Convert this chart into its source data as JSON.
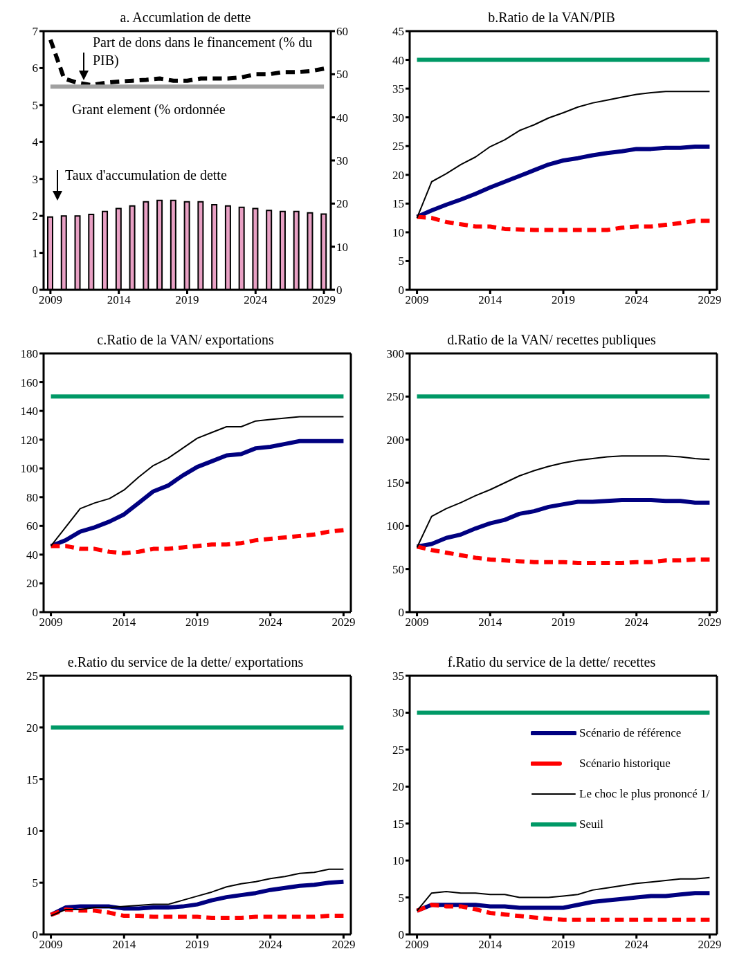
{
  "chart_data": [
    {
      "type": "bar",
      "title": "a. Accumlation de dette",
      "x": [
        2009,
        2010,
        2011,
        2012,
        2013,
        2014,
        2015,
        2016,
        2017,
        2018,
        2019,
        2020,
        2021,
        2022,
        2023,
        2024,
        2025,
        2026,
        2027,
        2028,
        2029
      ],
      "xlim": [
        2008.5,
        2029.5
      ],
      "xticks": [
        2009,
        2014,
        2019,
        2024,
        2029
      ],
      "ylim": [
        0,
        7
      ],
      "yticks": [
        0,
        1,
        2,
        3,
        4,
        5,
        6,
        7
      ],
      "y2lim": [
        0,
        60
      ],
      "y2ticks": [
        0,
        10,
        20,
        30,
        40,
        50,
        60
      ],
      "series": [
        {
          "color": "#e8a0c4",
          "values": [
            1.97,
            2.0,
            2.0,
            2.04,
            2.12,
            2.2,
            2.27,
            2.38,
            2.42,
            2.42,
            2.38,
            2.38,
            2.3,
            2.27,
            2.23,
            2.2,
            2.15,
            2.12,
            2.12,
            2.08,
            2.05
          ]
        },
        {
          "type": "line",
          "axis": "y2",
          "color": "#000000",
          "line_style": "dashed",
          "values": [
            58,
            49,
            48,
            47.5,
            48,
            48.3,
            48.5,
            48.7,
            49,
            48.5,
            48.5,
            49,
            49,
            49,
            49.3,
            50,
            50,
            50.5,
            50.5,
            50.7,
            51.3
          ]
        },
        {
          "type": "line",
          "color": "#a0a0a0",
          "values": [
            5.5,
            5.5,
            5.5,
            5.5,
            5.5,
            5.5,
            5.5,
            5.5,
            5.5,
            5.5,
            5.5,
            5.5,
            5.5,
            5.5,
            5.5,
            5.5,
            5.5,
            5.5,
            5.5,
            5.5,
            5.5
          ]
        }
      ],
      "annotations": [
        "Part de dons dans le financement (% du PIB)",
        "Grant element (% ordonnée",
        "Taux d'accumulation de dette"
      ]
    },
    {
      "type": "line",
      "title": "b.Ratio de la VAN/PIB",
      "x": [
        2009,
        2010,
        2011,
        2012,
        2013,
        2014,
        2015,
        2016,
        2017,
        2018,
        2019,
        2020,
        2021,
        2022,
        2023,
        2024,
        2025,
        2026,
        2027,
        2028,
        2029
      ],
      "xlim": [
        2008.5,
        2029.5
      ],
      "xticks": [
        2009,
        2014,
        2019,
        2024,
        2029
      ],
      "ylim": [
        0,
        45
      ],
      "yticks": [
        0,
        5,
        10,
        15,
        20,
        25,
        30,
        35,
        40,
        45
      ],
      "series": [
        {
          "color": "#000080",
          "values": [
            12.7,
            13.8,
            14.8,
            15.7,
            16.7,
            17.8,
            18.8,
            19.8,
            20.8,
            21.8,
            22.5,
            22.9,
            23.4,
            23.8,
            24.1,
            24.5,
            24.5,
            24.7,
            24.7,
            24.9,
            24.9
          ]
        },
        {
          "color": "#ff0000",
          "line_style": "dashed",
          "values": [
            12.7,
            12.5,
            11.8,
            11.4,
            11.0,
            11.0,
            10.6,
            10.5,
            10.4,
            10.4,
            10.4,
            10.4,
            10.4,
            10.4,
            10.8,
            11.0,
            11.0,
            11.3,
            11.6,
            12.0,
            12.0
          ]
        },
        {
          "color": "#000000",
          "values": [
            12.5,
            18.8,
            20.2,
            21.8,
            23.1,
            24.9,
            26.1,
            27.7,
            28.7,
            29.9,
            30.8,
            31.8,
            32.5,
            33.0,
            33.5,
            34.0,
            34.3,
            34.5,
            34.5,
            34.5,
            34.5
          ]
        },
        {
          "color": "#009966",
          "values": [
            40,
            40,
            40,
            40,
            40,
            40,
            40,
            40,
            40,
            40,
            40,
            40,
            40,
            40,
            40,
            40,
            40,
            40,
            40,
            40,
            40
          ]
        }
      ]
    },
    {
      "type": "line",
      "title": "c.Ratio de la VAN/ exportations",
      "x": [
        2009,
        2010,
        2011,
        2012,
        2013,
        2014,
        2015,
        2016,
        2017,
        2018,
        2019,
        2020,
        2021,
        2022,
        2023,
        2024,
        2025,
        2026,
        2027,
        2028,
        2029
      ],
      "xlim": [
        2008.5,
        2029.5
      ],
      "xticks": [
        2009,
        2014,
        2019,
        2024,
        2029
      ],
      "ylim": [
        0,
        180
      ],
      "yticks": [
        0,
        20,
        40,
        60,
        80,
        100,
        120,
        140,
        160,
        180
      ],
      "series": [
        {
          "color": "#000080",
          "values": [
            46,
            50,
            56,
            59,
            63,
            68,
            76,
            84,
            88,
            95,
            101,
            105,
            109,
            110,
            114,
            115,
            117,
            119,
            119,
            119,
            119
          ]
        },
        {
          "color": "#ff0000",
          "line_style": "dashed",
          "values": [
            46,
            46,
            44,
            44,
            42,
            41,
            42,
            44,
            44,
            45,
            46,
            47,
            47,
            48,
            50,
            51,
            52,
            53,
            54,
            56,
            57
          ]
        },
        {
          "color": "#000000",
          "values": [
            46,
            59,
            72,
            76,
            79,
            85,
            94,
            102,
            107,
            114,
            121,
            125,
            129,
            129,
            133,
            134,
            135,
            136,
            136,
            136,
            136
          ]
        },
        {
          "color": "#009966",
          "values": [
            150,
            150,
            150,
            150,
            150,
            150,
            150,
            150,
            150,
            150,
            150,
            150,
            150,
            150,
            150,
            150,
            150,
            150,
            150,
            150,
            150
          ]
        }
      ]
    },
    {
      "type": "line",
      "title": "d.Ratio de la VAN/ recettes publiques",
      "x": [
        2009,
        2010,
        2011,
        2012,
        2013,
        2014,
        2015,
        2016,
        2017,
        2018,
        2019,
        2020,
        2021,
        2022,
        2023,
        2024,
        2025,
        2026,
        2027,
        2028,
        2029
      ],
      "xlim": [
        2008.5,
        2029.5
      ],
      "xticks": [
        2009,
        2014,
        2019,
        2024,
        2029
      ],
      "ylim": [
        0,
        300
      ],
      "yticks": [
        0,
        50,
        100,
        150,
        200,
        250,
        300
      ],
      "series": [
        {
          "color": "#000080",
          "values": [
            76,
            79,
            86,
            90,
            97,
            103,
            107,
            114,
            117,
            122,
            125,
            128,
            128,
            129,
            130,
            130,
            130,
            129,
            129,
            127,
            127
          ]
        },
        {
          "color": "#ff0000",
          "line_style": "dashed",
          "values": [
            76,
            72,
            69,
            66,
            63,
            61,
            60,
            59,
            58,
            58,
            58,
            57,
            57,
            57,
            57,
            58,
            58,
            60,
            60,
            61,
            61
          ]
        },
        {
          "color": "#000000",
          "values": [
            75,
            111,
            120,
            127,
            135,
            142,
            150,
            158,
            164,
            169,
            173,
            176,
            178,
            180,
            181,
            181,
            181,
            181,
            180,
            178,
            177
          ]
        },
        {
          "color": "#009966",
          "values": [
            250,
            250,
            250,
            250,
            250,
            250,
            250,
            250,
            250,
            250,
            250,
            250,
            250,
            250,
            250,
            250,
            250,
            250,
            250,
            250,
            250
          ]
        }
      ]
    },
    {
      "type": "line",
      "title": "e.Ratio du service de la dette/ exportations",
      "x": [
        2009,
        2010,
        2011,
        2012,
        2013,
        2014,
        2015,
        2016,
        2017,
        2018,
        2019,
        2020,
        2021,
        2022,
        2023,
        2024,
        2025,
        2026,
        2027,
        2028,
        2029
      ],
      "xlim": [
        2008.5,
        2029.5
      ],
      "xticks": [
        2009,
        2014,
        2019,
        2024,
        2029
      ],
      "ylim": [
        0,
        25
      ],
      "yticks": [
        0,
        5,
        10,
        15,
        20,
        25
      ],
      "series": [
        {
          "color": "#000080",
          "values": [
            1.9,
            2.6,
            2.7,
            2.7,
            2.7,
            2.5,
            2.5,
            2.6,
            2.6,
            2.7,
            2.9,
            3.3,
            3.6,
            3.8,
            4.0,
            4.3,
            4.5,
            4.7,
            4.8,
            5.0,
            5.1
          ]
        },
        {
          "color": "#ff0000",
          "line_style": "dashed",
          "values": [
            1.9,
            2.4,
            2.3,
            2.3,
            2.1,
            1.8,
            1.8,
            1.7,
            1.7,
            1.7,
            1.7,
            1.6,
            1.6,
            1.6,
            1.7,
            1.7,
            1.7,
            1.7,
            1.7,
            1.8,
            1.8
          ]
        },
        {
          "color": "#000000",
          "values": [
            1.8,
            2.4,
            2.4,
            2.6,
            2.6,
            2.7,
            2.8,
            2.9,
            2.9,
            3.3,
            3.7,
            4.1,
            4.6,
            4.9,
            5.1,
            5.4,
            5.6,
            5.9,
            6.0,
            6.3,
            6.3
          ]
        },
        {
          "color": "#009966",
          "values": [
            20,
            20,
            20,
            20,
            20,
            20,
            20,
            20,
            20,
            20,
            20,
            20,
            20,
            20,
            20,
            20,
            20,
            20,
            20,
            20,
            20
          ]
        }
      ]
    },
    {
      "type": "line",
      "title": "f.Ratio du service de la dette/ recettes",
      "x": [
        2009,
        2010,
        2011,
        2012,
        2013,
        2014,
        2015,
        2016,
        2017,
        2018,
        2019,
        2020,
        2021,
        2022,
        2023,
        2024,
        2025,
        2026,
        2027,
        2028,
        2029
      ],
      "xlim": [
        2008.5,
        2029.5
      ],
      "xticks": [
        2009,
        2014,
        2019,
        2024,
        2029
      ],
      "ylim": [
        0,
        35
      ],
      "yticks": [
        0,
        5,
        10,
        15,
        20,
        25,
        30,
        35
      ],
      "legend": "right",
      "series": [
        {
          "name": "Scénario de référence",
          "color": "#000080",
          "values": [
            3.2,
            4.0,
            4.0,
            4.0,
            4.0,
            3.8,
            3.8,
            3.6,
            3.6,
            3.6,
            3.6,
            4.0,
            4.4,
            4.6,
            4.8,
            5.0,
            5.2,
            5.2,
            5.4,
            5.6,
            5.6
          ]
        },
        {
          "name": "Scénario historique",
          "color": "#ff0000",
          "line_style": "dashed",
          "values": [
            3.2,
            4.0,
            3.8,
            3.8,
            3.4,
            2.9,
            2.7,
            2.5,
            2.3,
            2.1,
            2.0,
            2.0,
            2.0,
            2.0,
            2.0,
            2.0,
            2.0,
            2.0,
            2.0,
            2.0,
            2.0
          ]
        },
        {
          "name": "Le choc le plus prononcé 1/",
          "color": "#000000",
          "values": [
            3.2,
            5.6,
            5.8,
            5.6,
            5.6,
            5.4,
            5.4,
            5.0,
            5.0,
            5.0,
            5.2,
            5.4,
            6.0,
            6.3,
            6.6,
            6.9,
            7.1,
            7.3,
            7.5,
            7.5,
            7.7
          ]
        },
        {
          "name": "Seuil",
          "color": "#009966",
          "values": [
            30,
            30,
            30,
            30,
            30,
            30,
            30,
            30,
            30,
            30,
            30,
            30,
            30,
            30,
            30,
            30,
            30,
            30,
            30,
            30,
            30
          ]
        }
      ]
    }
  ]
}
